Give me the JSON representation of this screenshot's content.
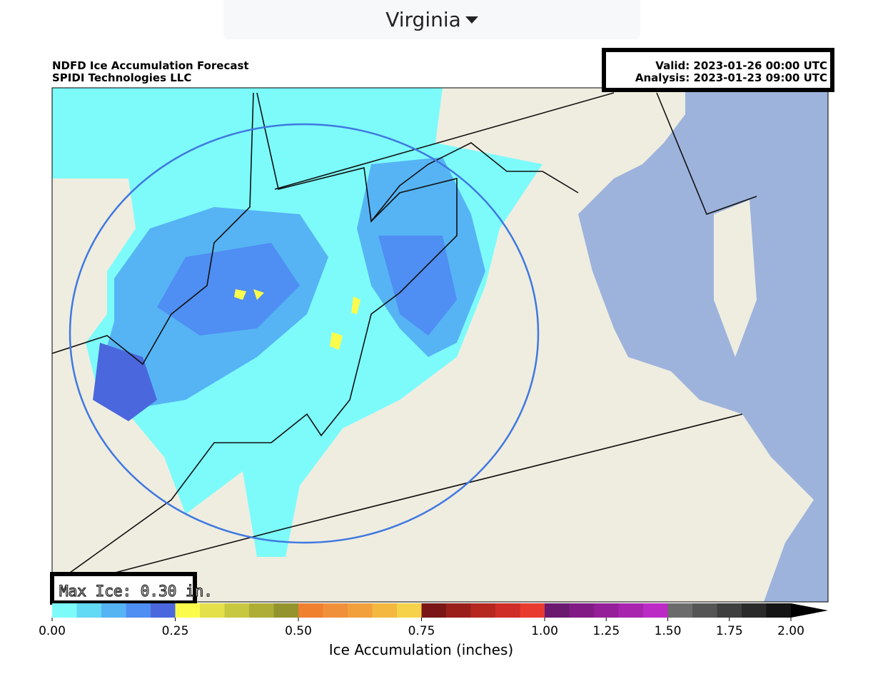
{
  "header": {
    "selector": "Virginia"
  },
  "map": {
    "title": "NDFD Ice Accumulation Forecast",
    "subtitle": "SPIDI Technologies LLC",
    "valid": "Valid: 2023-01-26 00:00 UTC",
    "analysis": "Analysis: 2023-01-23 09:00 UTC",
    "max_label": "Max Ice: 0.30 in."
  },
  "chart_data": {
    "type": "colorbar",
    "xlabel": "Ice Accumulation (inches)",
    "bins": [
      0,
      0.05,
      0.1,
      0.15,
      0.2,
      0.25,
      0.3,
      0.35,
      0.4,
      0.45,
      0.5,
      0.55,
      0.6,
      0.65,
      0.7,
      0.75,
      0.8,
      0.85,
      0.9,
      0.95,
      1.0,
      1.1,
      1.2,
      1.3,
      1.4,
      1.5,
      1.6,
      1.7,
      1.8,
      1.9,
      2.0
    ],
    "colors": [
      "#7dfbfb",
      "#62d9f5",
      "#56b4f5",
      "#4f8ef2",
      "#4b67de",
      "#fbfb4b",
      "#e3e04a",
      "#c8c840",
      "#aeae37",
      "#94942e",
      "#f07f2e",
      "#f1903a",
      "#f2a03c",
      "#f4b840",
      "#f6d24a",
      "#7a1616",
      "#9a1f1a",
      "#b5271f",
      "#cf2d27",
      "#e83a2e",
      "#6b1a70",
      "#821c84",
      "#951f98",
      "#a824ae",
      "#bc2ac6",
      "#6b6b6b",
      "#555555",
      "#3f3f3f",
      "#2a2a2a",
      "#151515"
    ],
    "extend_color": "#000000",
    "xlim": [
      0,
      2.0
    ],
    "xticks": [
      {
        "value": 0,
        "label": "0.00"
      },
      {
        "value": 0.25,
        "label": "0.25"
      },
      {
        "value": 0.5,
        "label": "0.50"
      },
      {
        "value": 0.75,
        "label": "0.75"
      },
      {
        "value": 1.0,
        "label": "1.00"
      },
      {
        "value": 1.25,
        "label": "1.25"
      },
      {
        "value": 1.5,
        "label": "1.50"
      },
      {
        "value": 1.75,
        "label": "1.75"
      },
      {
        "value": 2.0,
        "label": "2.00"
      }
    ]
  }
}
